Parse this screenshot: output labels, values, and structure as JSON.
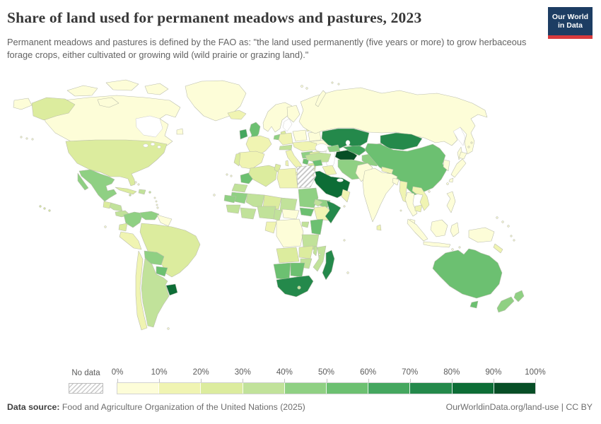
{
  "header": {
    "title": "Share of land used for permanent meadows and pastures, 2023",
    "subtitle": "Permanent meadows and pastures is defined by the FAO as: \"the land used permanently (five years or more) to grow herbaceous forage crops, either cultivated or growing wild (wild prairie or grazing land).\"",
    "logo": {
      "line1": "Our World",
      "line2": "in Data",
      "bg_color": "#1d3d63",
      "accent_color": "#d93a3d"
    }
  },
  "footer": {
    "datasource_label": "Data source:",
    "datasource": " Food and Agriculture Organization of the United Nations (2025)",
    "link": "OurWorldinData.org/land-use",
    "separator": " | ",
    "license": "CC BY"
  },
  "chart_data": {
    "type": "choropleth",
    "title": "Share of land used for permanent meadows and pastures",
    "year": "2023",
    "unit": "% of land area",
    "projection": "world map",
    "legend": {
      "no_data_label": "No data",
      "tick_labels": [
        "0%",
        "10%",
        "20%",
        "30%",
        "40%",
        "50%",
        "60%",
        "70%",
        "80%",
        "90%",
        "100%"
      ],
      "colors": [
        "#fdfdd8",
        "#f0f4b2",
        "#dcec9e",
        "#c1e29a",
        "#8fd083",
        "#6cc071",
        "#45a75f",
        "#24894b",
        "#0d6d36",
        "#074e26"
      ]
    },
    "regions": [
      {
        "id": "greenland",
        "name": "Greenland",
        "range": "0-10%",
        "color": "#fdfdd8"
      },
      {
        "id": "canada",
        "name": "Canada",
        "range": "0-10%",
        "color": "#fdfdd8"
      },
      {
        "id": "usa",
        "name": "United States",
        "range": "20-30%",
        "color": "#dcec9e"
      },
      {
        "id": "mexico",
        "name": "Mexico",
        "range": "40-50%",
        "color": "#8fd083"
      },
      {
        "id": "guatemala",
        "name": "Guatemala",
        "range": "20-30%",
        "color": "#dcec9e"
      },
      {
        "id": "honduras-nicaragua",
        "name": "Honduras & Nicaragua",
        "range": "30-40%",
        "color": "#c1e29a"
      },
      {
        "id": "costa-rica-panama",
        "name": "Costa Rica & Panama",
        "range": "30-40%",
        "color": "#c1e29a"
      },
      {
        "id": "cuba",
        "name": "Cuba",
        "range": "20-30%",
        "color": "#dcec9e"
      },
      {
        "id": "hispaniola",
        "name": "Haiti & Dominican Republic",
        "range": "30-40%",
        "color": "#c1e29a"
      },
      {
        "id": "caribbean-islands",
        "name": "Jamaica & Puerto Rico",
        "range": "30-40%",
        "color": "#c1e29a"
      },
      {
        "id": "colombia",
        "name": "Colombia",
        "range": "40-50%",
        "color": "#8fd083"
      },
      {
        "id": "venezuela",
        "name": "Venezuela",
        "range": "40-50%",
        "color": "#8fd083"
      },
      {
        "id": "guyanas",
        "name": "Guyana, Suriname & French Guiana",
        "range": "0-10%",
        "color": "#fdfdd8"
      },
      {
        "id": "brazil",
        "name": "Brazil",
        "range": "20-30%",
        "color": "#dcec9e"
      },
      {
        "id": "ecuador",
        "name": "Ecuador",
        "range": "20-30%",
        "color": "#dcec9e"
      },
      {
        "id": "peru",
        "name": "Peru",
        "range": "10-20%",
        "color": "#f0f4b2"
      },
      {
        "id": "bolivia",
        "name": "Bolivia",
        "range": "40-50%",
        "color": "#8fd083"
      },
      {
        "id": "paraguay",
        "name": "Paraguay",
        "range": "50-60%",
        "color": "#6cc071"
      },
      {
        "id": "uruguay",
        "name": "Uruguay",
        "range": "80-90%",
        "color": "#0d6d36"
      },
      {
        "id": "argentina",
        "name": "Argentina",
        "range": "30-40%",
        "color": "#c1e29a"
      },
      {
        "id": "chile",
        "name": "Chile",
        "range": "10-20%",
        "color": "#f0f4b2"
      },
      {
        "id": "iceland",
        "name": "Iceland",
        "range": "10-20%",
        "color": "#f0f4b2"
      },
      {
        "id": "norway-sweden",
        "name": "Norway & Sweden",
        "range": "0-10%",
        "color": "#fdfdd8"
      },
      {
        "id": "finland",
        "name": "Finland",
        "range": "0-10%",
        "color": "#fdfdd8"
      },
      {
        "id": "denmark",
        "name": "Denmark",
        "range": "20-30%",
        "color": "#dcec9e"
      },
      {
        "id": "uk",
        "name": "United Kingdom",
        "range": "50-60%",
        "color": "#6cc071"
      },
      {
        "id": "ireland",
        "name": "Ireland",
        "range": "60-70%",
        "color": "#45a75f"
      },
      {
        "id": "benelux",
        "name": "Netherlands & Belgium",
        "range": "40-50%",
        "color": "#8fd083"
      },
      {
        "id": "germany",
        "name": "Germany",
        "range": "10-20%",
        "color": "#f0f4b2"
      },
      {
        "id": "poland",
        "name": "Poland",
        "range": "0-10%",
        "color": "#fdfdd8"
      },
      {
        "id": "baltics",
        "name": "Baltic states",
        "range": "10-20%",
        "color": "#f0f4b2"
      },
      {
        "id": "belarus",
        "name": "Belarus",
        "range": "0-10%",
        "color": "#fdfdd8"
      },
      {
        "id": "ukraine",
        "name": "Ukraine",
        "range": "0-10%",
        "color": "#fdfdd8"
      },
      {
        "id": "france",
        "name": "France",
        "range": "10-20%",
        "color": "#f0f4b2"
      },
      {
        "id": "spain",
        "name": "Spain",
        "range": "10-20%",
        "color": "#f0f4b2"
      },
      {
        "id": "portugal",
        "name": "Portugal",
        "range": "20-30%",
        "color": "#dcec9e"
      },
      {
        "id": "alpine",
        "name": "Switzerland & Austria",
        "range": "30-40%",
        "color": "#c1e29a"
      },
      {
        "id": "italy",
        "name": "Italy",
        "range": "10-20%",
        "color": "#f0f4b2"
      },
      {
        "id": "central-europe",
        "name": "Czechia, Hungary & Romania",
        "range": "10-20%",
        "color": "#f0f4b2"
      },
      {
        "id": "balkans",
        "name": "Serbia & Bosnia",
        "range": "40-50%",
        "color": "#8fd083"
      },
      {
        "id": "albania",
        "name": "Albania & Montenegro",
        "range": "50-60%",
        "color": "#6cc071"
      },
      {
        "id": "bulgaria",
        "name": "Bulgaria",
        "range": "20-30%",
        "color": "#dcec9e"
      },
      {
        "id": "greece",
        "name": "Greece",
        "range": "20-30%",
        "color": "#dcec9e"
      },
      {
        "id": "turkey",
        "name": "Turkey",
        "range": "30-40%",
        "color": "#c1e29a"
      },
      {
        "id": "caucasus",
        "name": "Georgia, Armenia & Azerbaijan",
        "range": "40-50%",
        "color": "#8fd083"
      },
      {
        "id": "russia",
        "name": "Russia",
        "range": "0-10%",
        "color": "#fdfdd8"
      },
      {
        "id": "kazakhstan",
        "name": "Kazakhstan",
        "range": "70-80%",
        "color": "#24894b"
      },
      {
        "id": "turkmenistan",
        "name": "Turkmenistan",
        "range": "90-100%",
        "color": "#074e26"
      },
      {
        "id": "uzbekistan",
        "name": "Uzbekistan",
        "range": "60-70%",
        "color": "#45a75f"
      },
      {
        "id": "kyrgyzstan",
        "name": "Kyrgyzstan",
        "range": "50-60%",
        "color": "#6cc071"
      },
      {
        "id": "tajikistan",
        "name": "Tajikistan",
        "range": "40-50%",
        "color": "#8fd083"
      },
      {
        "id": "afghanistan",
        "name": "Afghanistan",
        "range": "40-50%",
        "color": "#8fd083"
      },
      {
        "id": "pakistan",
        "name": "Pakistan",
        "range": "0-10%",
        "color": "#fdfdd8"
      },
      {
        "id": "iran",
        "name": "Iran",
        "range": "40-50%",
        "color": "#8fd083"
      },
      {
        "id": "iraq",
        "name": "Iraq",
        "range": "10-20%",
        "color": "#f0f4b2"
      },
      {
        "id": "syria",
        "name": "Syria",
        "range": "50-60%",
        "color": "#6cc071"
      },
      {
        "id": "levant",
        "name": "Israel & Jordan",
        "range": "10-20%",
        "color": "#f0f4b2"
      },
      {
        "id": "saudi-arabia",
        "name": "Saudi Arabia",
        "range": "80-90%",
        "color": "#0d6d36"
      },
      {
        "id": "yemen",
        "name": "Yemen",
        "range": "40-50%",
        "color": "#8fd083"
      },
      {
        "id": "oman",
        "name": "Oman",
        "range": "10-20%",
        "color": "#f0f4b2"
      },
      {
        "id": "morocco",
        "name": "Morocco",
        "range": "50-60%",
        "color": "#6cc071"
      },
      {
        "id": "western-sahara",
        "name": "Western Sahara",
        "range": "30-40%",
        "color": "#c1e29a"
      },
      {
        "id": "algeria",
        "name": "Algeria",
        "range": "20-30%",
        "color": "#dcec9e"
      },
      {
        "id": "tunisia",
        "name": "Tunisia",
        "range": "20-30%",
        "color": "#dcec9e"
      },
      {
        "id": "libya",
        "name": "Libya",
        "range": "10-20%",
        "color": "#f0f4b2"
      },
      {
        "id": "egypt",
        "name": "Egypt",
        "range": "no data",
        "color": "hatch"
      },
      {
        "id": "mauritania",
        "name": "Mauritania",
        "range": "40-50%",
        "color": "#8fd083"
      },
      {
        "id": "mali",
        "name": "Mali",
        "range": "30-40%",
        "color": "#c1e29a"
      },
      {
        "id": "niger",
        "name": "Niger",
        "range": "20-30%",
        "color": "#dcec9e"
      },
      {
        "id": "chad",
        "name": "Chad",
        "range": "30-40%",
        "color": "#c1e29a"
      },
      {
        "id": "sudan",
        "name": "Sudan",
        "range": "40-50%",
        "color": "#8fd083"
      },
      {
        "id": "south-sudan",
        "name": "South Sudan",
        "range": "50-60%",
        "color": "#6cc071"
      },
      {
        "id": "eritrea",
        "name": "Eritrea",
        "range": "30-40%",
        "color": "#c1e29a"
      },
      {
        "id": "ethiopia",
        "name": "Ethiopia",
        "range": "10-20%",
        "color": "#f0f4b2"
      },
      {
        "id": "somalia",
        "name": "Somalia",
        "range": "70-80%",
        "color": "#24894b"
      },
      {
        "id": "senegal",
        "name": "Senegal",
        "range": "40-50%",
        "color": "#8fd083"
      },
      {
        "id": "guinea",
        "name": "Guinea",
        "range": "30-40%",
        "color": "#c1e29a"
      },
      {
        "id": "ivory-ghana",
        "name": "Côte d'Ivoire & Ghana",
        "range": "30-40%",
        "color": "#c1e29a"
      },
      {
        "id": "nigeria",
        "name": "Nigeria",
        "range": "30-40%",
        "color": "#c1e29a"
      },
      {
        "id": "cameroon",
        "name": "Cameroon",
        "range": "30-40%",
        "color": "#c1e29a"
      },
      {
        "id": "car",
        "name": "Central African Republic",
        "range": "0-10%",
        "color": "#fdfdd8"
      },
      {
        "id": "gabon-congo",
        "name": "Gabon & Congo",
        "range": "10-20%",
        "color": "#f0f4b2"
      },
      {
        "id": "drc",
        "name": "Democratic Republic of Congo",
        "range": "0-10%",
        "color": "#fdfdd8"
      },
      {
        "id": "uganda",
        "name": "Uganda",
        "range": "30-40%",
        "color": "#c1e29a"
      },
      {
        "id": "kenya",
        "name": "Kenya",
        "range": "50-60%",
        "color": "#6cc071"
      },
      {
        "id": "tanzania",
        "name": "Tanzania",
        "range": "30-40%",
        "color": "#c1e29a"
      },
      {
        "id": "angola",
        "name": "Angola",
        "range": "20-30%",
        "color": "#dcec9e"
      },
      {
        "id": "zambia",
        "name": "Zambia",
        "range": "20-30%",
        "color": "#dcec9e"
      },
      {
        "id": "malawi",
        "name": "Malawi",
        "range": "30-40%",
        "color": "#c1e29a"
      },
      {
        "id": "mozambique",
        "name": "Mozambique",
        "range": "30-40%",
        "color": "#c1e29a"
      },
      {
        "id": "zimbabwe",
        "name": "Zimbabwe",
        "range": "30-40%",
        "color": "#c1e29a"
      },
      {
        "id": "namibia",
        "name": "Namibia",
        "range": "50-60%",
        "color": "#6cc071"
      },
      {
        "id": "botswana",
        "name": "Botswana",
        "range": "50-60%",
        "color": "#6cc071"
      },
      {
        "id": "south-africa",
        "name": "South Africa",
        "range": "70-80%",
        "color": "#24894b"
      },
      {
        "id": "lesotho",
        "name": "Lesotho",
        "range": "30-40%",
        "color": "#c1e29a"
      },
      {
        "id": "madagascar",
        "name": "Madagascar",
        "range": "70-80%",
        "color": "#24894b"
      },
      {
        "id": "mongolia",
        "name": "Mongolia",
        "range": "70-80%",
        "color": "#24894b"
      },
      {
        "id": "china",
        "name": "China",
        "range": "50-60%",
        "color": "#6cc071"
      },
      {
        "id": "korea",
        "name": "North & South Korea",
        "range": "0-10%",
        "color": "#fdfdd8"
      },
      {
        "id": "japan",
        "name": "Japan",
        "range": "0-10%",
        "color": "#fdfdd8"
      },
      {
        "id": "nepal",
        "name": "Nepal",
        "range": "10-20%",
        "color": "#f0f4b2"
      },
      {
        "id": "india",
        "name": "India",
        "range": "0-10%",
        "color": "#fdfdd8"
      },
      {
        "id": "sri-lanka",
        "name": "Sri Lanka",
        "range": "10-20%",
        "color": "#f0f4b2"
      },
      {
        "id": "bangladesh",
        "name": "Bangladesh",
        "range": "0-10%",
        "color": "#fdfdd8"
      },
      {
        "id": "myanmar",
        "name": "Myanmar",
        "range": "10-20%",
        "color": "#f0f4b2"
      },
      {
        "id": "thailand",
        "name": "Thailand",
        "range": "0-10%",
        "color": "#fdfdd8"
      },
      {
        "id": "laos-vietnam",
        "name": "Laos & Vietnam",
        "range": "10-20%",
        "color": "#f0f4b2"
      },
      {
        "id": "cambodia",
        "name": "Cambodia",
        "range": "10-20%",
        "color": "#f0f4b2"
      },
      {
        "id": "malaysia",
        "name": "Malaysia",
        "range": "0-10%",
        "color": "#fdfdd8"
      },
      {
        "id": "indonesia",
        "name": "Indonesia",
        "range": "0-10%",
        "color": "#fdfdd8"
      },
      {
        "id": "philippines",
        "name": "Philippines",
        "range": "0-10%",
        "color": "#fdfdd8"
      },
      {
        "id": "new-guinea",
        "name": "Papua New Guinea",
        "range": "0-10%",
        "color": "#fdfdd8"
      },
      {
        "id": "australia",
        "name": "Australia",
        "range": "50-60%",
        "color": "#6cc071"
      },
      {
        "id": "new-zealand",
        "name": "New Zealand",
        "range": "40-50%",
        "color": "#8fd083"
      },
      {
        "id": "new-caledonia",
        "name": "New Caledonia",
        "range": "10-20%",
        "color": "#f0f4b2"
      },
      {
        "id": "islands",
        "name": "Small islands",
        "range": "0-10%",
        "color": "#fdfdd8"
      }
    ]
  }
}
